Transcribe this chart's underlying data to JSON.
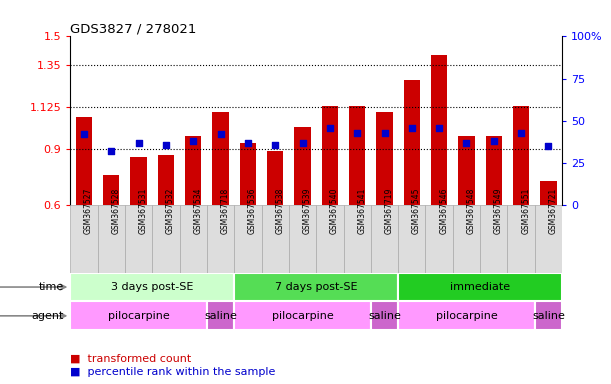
{
  "title": "GDS3827 / 278021",
  "samples": [
    "GSM367527",
    "GSM367528",
    "GSM367531",
    "GSM367532",
    "GSM367534",
    "GSM367718",
    "GSM367536",
    "GSM367538",
    "GSM367539",
    "GSM367540",
    "GSM367541",
    "GSM367719",
    "GSM367545",
    "GSM367546",
    "GSM367548",
    "GSM367549",
    "GSM367551",
    "GSM367721"
  ],
  "bar_values": [
    1.07,
    0.76,
    0.86,
    0.87,
    0.97,
    1.1,
    0.93,
    0.89,
    1.02,
    1.13,
    1.13,
    1.1,
    1.27,
    1.4,
    0.97,
    0.97,
    1.13,
    0.73
  ],
  "dot_values": [
    42,
    32,
    37,
    36,
    38,
    42,
    37,
    36,
    37,
    46,
    43,
    43,
    46,
    46,
    37,
    38,
    43,
    35
  ],
  "ylim_left": [
    0.6,
    1.5
  ],
  "ylim_right": [
    0,
    100
  ],
  "yticks_left": [
    0.6,
    0.9,
    1.125,
    1.35,
    1.5
  ],
  "ytick_labels_left": [
    "0.6",
    "0.9",
    "1.125",
    "1.35",
    "1.5"
  ],
  "yticks_right": [
    0,
    25,
    50,
    75,
    100
  ],
  "ytick_labels_right": [
    "0",
    "25",
    "50",
    "75",
    "100%"
  ],
  "hlines": [
    0.9,
    1.125,
    1.35
  ],
  "bar_color": "#cc0000",
  "dot_color": "#0000cc",
  "time_groups": [
    {
      "label": "3 days post-SE",
      "start": 0,
      "end": 5,
      "color": "#ccffcc"
    },
    {
      "label": "7 days post-SE",
      "start": 6,
      "end": 11,
      "color": "#55dd55"
    },
    {
      "label": "immediate",
      "start": 12,
      "end": 17,
      "color": "#22cc22"
    }
  ],
  "agent_groups": [
    {
      "label": "pilocarpine",
      "start": 0,
      "end": 4,
      "color": "#ff99ff"
    },
    {
      "label": "saline",
      "start": 5,
      "end": 5,
      "color": "#cc66cc"
    },
    {
      "label": "pilocarpine",
      "start": 6,
      "end": 10,
      "color": "#ff99ff"
    },
    {
      "label": "saline",
      "start": 11,
      "end": 11,
      "color": "#cc66cc"
    },
    {
      "label": "pilocarpine",
      "start": 12,
      "end": 16,
      "color": "#ff99ff"
    },
    {
      "label": "saline",
      "start": 17,
      "end": 17,
      "color": "#cc66cc"
    }
  ],
  "legend_bar_label": "transformed count",
  "legend_dot_label": "percentile rank within the sample",
  "time_label": "time",
  "agent_label": "agent",
  "xlabel_bg": "#dddddd",
  "xlabel_border": "#aaaaaa"
}
